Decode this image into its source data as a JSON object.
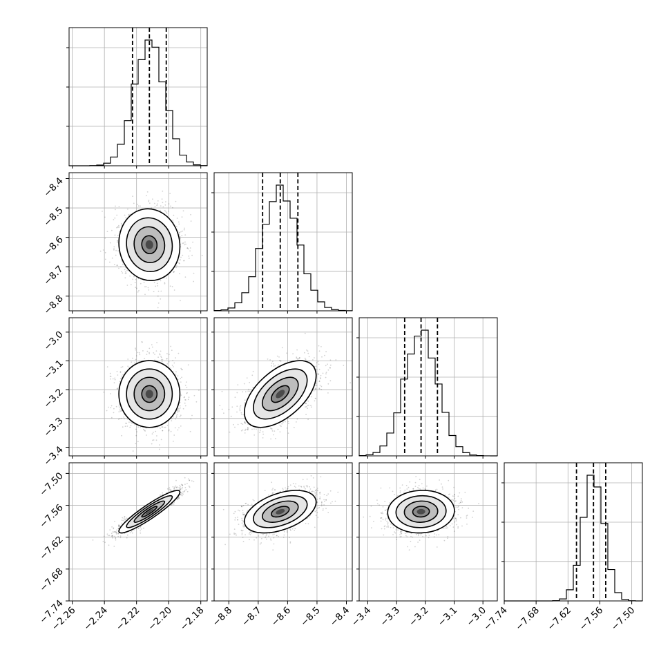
{
  "chart_data": {
    "type": "corner",
    "parameters": [
      {
        "mean": -2.212,
        "std": 0.0095,
        "range": [
          -2.262,
          -2.176
        ],
        "ticks": [
          -2.26,
          -2.24,
          -2.22,
          -2.2,
          -2.18
        ],
        "tick_labels": [
          "−2.26",
          "−2.24",
          "−2.22",
          "−2.20",
          "−2.18"
        ],
        "quantiles": [
          -2.2225,
          -2.212,
          -2.2015
        ]
      },
      {
        "mean": -8.625,
        "std": 0.061,
        "range": [
          -8.85,
          -8.38
        ],
        "ticks": [
          -8.8,
          -8.7,
          -8.6,
          -8.5,
          -8.4
        ],
        "tick_labels": [
          "−8.8",
          "−8.7",
          "−8.6",
          "−8.5",
          "−8.4"
        ],
        "quantiles": [
          -8.685,
          -8.625,
          -8.565
        ]
      },
      {
        "mean": -3.215,
        "std": 0.058,
        "range": [
          -3.43,
          -2.95
        ],
        "ticks": [
          -3.4,
          -3.3,
          -3.2,
          -3.1,
          -3.0
        ],
        "tick_labels": [
          "−3.4",
          "−3.3",
          "−3.2",
          "−3.1",
          "−3.0"
        ],
        "quantiles": [
          -3.272,
          -3.215,
          -3.158
        ]
      },
      {
        "mean": -7.572,
        "std": 0.02,
        "range": [
          -7.74,
          -7.48
        ],
        "ticks": [
          -7.74,
          -7.68,
          -7.62,
          -7.56,
          -7.5
        ],
        "tick_labels": [
          "−7.74",
          "−7.68",
          "−7.62",
          "−7.56",
          "−7.50"
        ],
        "quantiles": [
          -7.604,
          -7.572,
          -7.549
        ]
      }
    ],
    "correlations": [
      [
        1.0,
        -0.05,
        0.0,
        0.92
      ],
      [
        -0.05,
        1.0,
        0.55,
        0.45
      ],
      [
        0.0,
        0.55,
        1.0,
        0.05
      ],
      [
        0.92,
        0.45,
        0.05,
        1.0
      ]
    ],
    "contour_levels_sigma": [
      0.5,
      1.0,
      1.5,
      2.0
    ],
    "histogram_bins": 20,
    "grid": true
  }
}
